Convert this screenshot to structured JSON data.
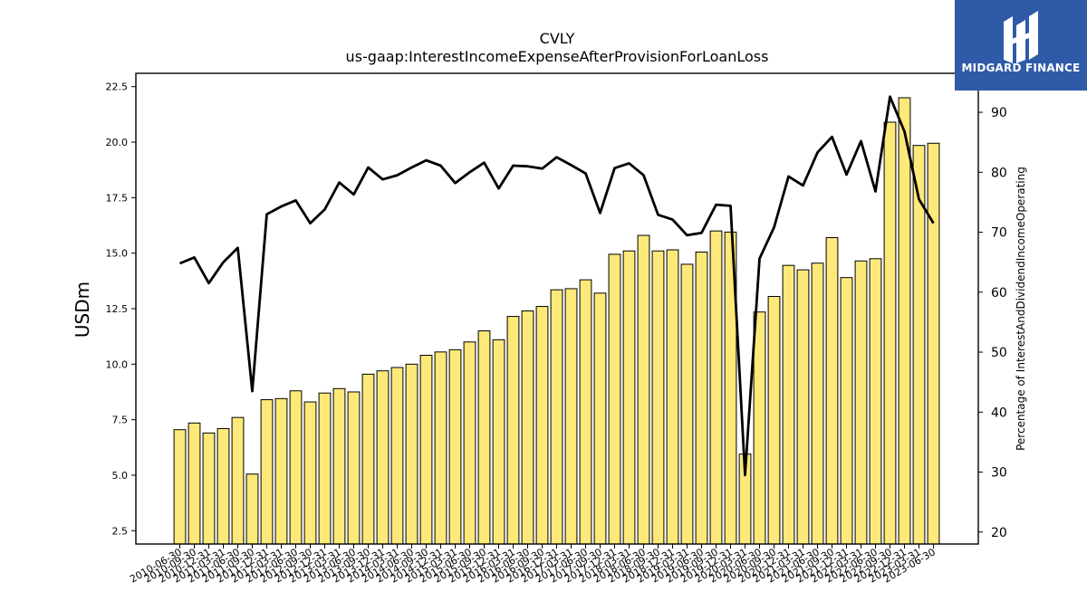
{
  "chart_data": {
    "type": "bar+line",
    "title": "CVLY",
    "subtitle": "us-gaap:InterestIncomeExpenseAfterProvisionForLoanLoss",
    "ylabel": "USDm",
    "y2label": "Percentage of InterestAndDividendIncomeOperating",
    "ylim": [
      1.9,
      23.1
    ],
    "y2lim": [
      18.0,
      96.5
    ],
    "yticks": [
      2.5,
      5.0,
      7.5,
      10.0,
      12.5,
      15.0,
      17.5,
      20.0,
      22.5
    ],
    "y2ticks": [
      20,
      30,
      40,
      50,
      60,
      70,
      80,
      90
    ],
    "categories": [
      "2010-06-30",
      "2010-09-30",
      "2010-12-31",
      "2011-03-31",
      "2011-06-30",
      "2011-09-30",
      "2011-12-31",
      "2012-03-31",
      "2012-06-30",
      "2012-09-30",
      "2012-12-31",
      "2013-03-31",
      "2013-06-30",
      "2013-09-30",
      "2013-12-31",
      "2014-03-31",
      "2014-06-30",
      "2014-09-30",
      "2014-12-31",
      "2015-03-31",
      "2015-06-30",
      "2015-09-30",
      "2015-12-31",
      "2016-03-31",
      "2016-06-30",
      "2016-09-30",
      "2016-12-31",
      "2017-03-31",
      "2017-06-30",
      "2017-09-30",
      "2017-12-31",
      "2018-03-31",
      "2018-06-30",
      "2018-09-30",
      "2018-12-31",
      "2019-03-31",
      "2019-06-30",
      "2019-09-30",
      "2019-12-31",
      "2020-03-31",
      "2020-06-30",
      "2020-09-30",
      "2020-12-31",
      "2021-03-31",
      "2021-06-30",
      "2021-09-30",
      "2021-12-31",
      "2022-03-31",
      "2022-06-30",
      "2022-09-30",
      "2022-12-31",
      "2023-03-31",
      "2023-06-30"
    ],
    "xtick_labels": [
      "2010-06-30",
      "2010-09-30",
      "2010-12-31",
      "2011-03-31",
      "2011-06-30",
      "2011-09-30",
      "2011-12-31",
      "2012-03-31",
      "2012-06-30",
      "2012-09-30",
      "2012-12-31",
      "2013-03-31",
      "2013-06-30",
      "2013-09-30",
      "2013-12-31",
      "2014-03-31",
      "2014-06-30",
      "2014-09-30",
      "2014-12-31",
      "2015-03-31",
      "2015-06-30",
      "2015-09-30",
      "2015-12-31",
      "2016-03-31",
      "2016-06-30",
      "2016-09-30",
      "2016-12-31",
      "2017-03-31",
      "2017-06-30",
      "2017-09-30",
      "2017-12-31",
      "2018-03-31",
      "2018-06-30",
      "2018-09-30",
      "2018-12-31",
      "2019-03-31",
      "2019-06-30",
      "2019-09-30",
      "2019-12-31",
      "2020-03-31",
      "2020-06-30",
      "2020-09-30",
      "2020-12-31",
      "2021-03-31",
      "2021-06-30",
      "2021-09-30",
      "2021-12-31",
      "2022-03-31",
      "2022-06-30",
      "2022-09-30",
      "2022-12-31",
      "2023-03-31",
      "2023-06-30"
    ],
    "bars": {
      "axis": "left",
      "color": "#fde97a",
      "values": [
        7.05,
        7.35,
        6.9,
        7.1,
        7.6,
        5.05,
        8.4,
        8.45,
        8.8,
        8.3,
        8.7,
        8.9,
        8.75,
        9.55,
        9.7,
        9.85,
        10.0,
        10.4,
        10.55,
        10.65,
        11.0,
        11.5,
        11.1,
        12.15,
        12.4,
        12.6,
        13.35,
        13.4,
        13.8,
        13.2,
        14.95,
        15.1,
        15.8,
        15.1,
        15.15,
        14.5,
        15.05,
        16.0,
        15.95,
        5.95,
        12.35,
        13.05,
        14.45,
        14.25,
        14.55,
        15.7,
        13.9,
        14.65,
        14.75,
        20.9,
        22.0,
        19.85,
        19.95
      ]
    },
    "line": {
      "axis": "right",
      "color": "#000000",
      "values": [
        64.8,
        65.8,
        61.5,
        65.0,
        67.4,
        43.5,
        73.0,
        74.3,
        75.3,
        71.5,
        73.8,
        78.3,
        76.3,
        80.8,
        78.8,
        79.5,
        80.8,
        82.0,
        81.1,
        78.2,
        80.0,
        81.6,
        77.3,
        81.1,
        81.0,
        80.6,
        82.5,
        81.2,
        79.8,
        73.2,
        80.7,
        81.5,
        79.5,
        72.9,
        72.1,
        69.5,
        69.9,
        74.6,
        74.4,
        29.5,
        65.6,
        70.8,
        79.3,
        77.8,
        83.3,
        85.9,
        79.6,
        85.2,
        76.8,
        92.6,
        86.8,
        75.5,
        71.5
      ]
    }
  },
  "logo": {
    "text": "MIDGARD FINANCE",
    "color": "#2f5aa8"
  }
}
